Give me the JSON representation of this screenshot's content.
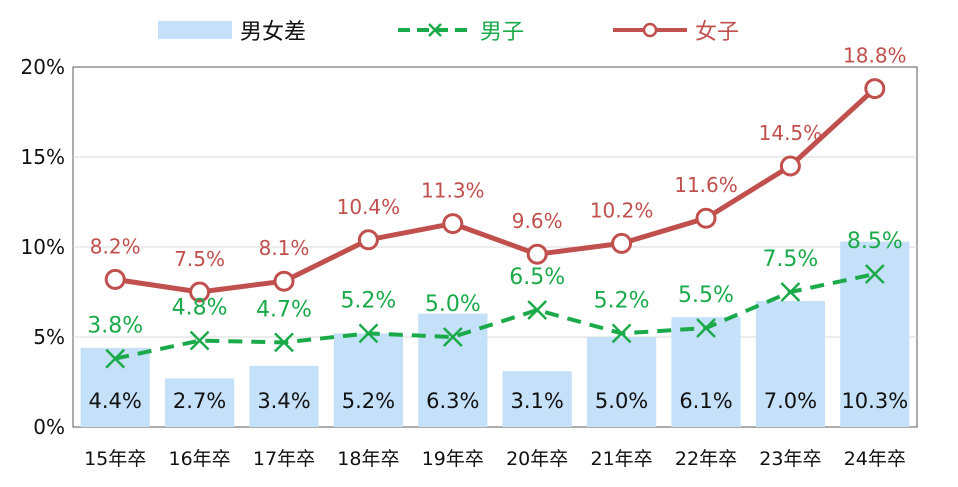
{
  "legend": {
    "diff": "男女差",
    "male": "男子",
    "female": "女子"
  },
  "colors": {
    "diff_bar": "#c5e0f9",
    "male": "#1aaa4a",
    "female": "#c0504d",
    "grid": "#d9d9d9",
    "axis": "#595959",
    "bar_label": "#111111"
  },
  "chart_data": {
    "type": "bar",
    "categories": [
      "15年卒",
      "16年卒",
      "17年卒",
      "18年卒",
      "19年卒",
      "20年卒",
      "21年卒",
      "22年卒",
      "23年卒",
      "24年卒"
    ],
    "ylim": [
      0,
      20
    ],
    "yticks": [
      "0%",
      "5%",
      "10%",
      "15%",
      "20%"
    ],
    "grid": true,
    "legend_position": "top",
    "series": [
      {
        "name": "男女差",
        "type": "bar",
        "values": [
          4.4,
          2.7,
          3.4,
          5.2,
          6.3,
          3.1,
          5.0,
          6.1,
          7.0,
          10.3
        ],
        "labels": [
          "4.4%",
          "2.7%",
          "3.4%",
          "5.2%",
          "6.3%",
          "3.1%",
          "5.0%",
          "6.1%",
          "7.0%",
          "10.3%"
        ]
      },
      {
        "name": "男子",
        "type": "line",
        "style": "dashed-x-marker",
        "values": [
          3.8,
          4.8,
          4.7,
          5.2,
          5.0,
          6.5,
          5.2,
          5.5,
          7.5,
          8.5
        ],
        "labels": [
          "3.8%",
          "4.8%",
          "4.7%",
          "5.2%",
          "5.0%",
          "6.5%",
          "5.2%",
          "5.5%",
          "7.5%",
          "8.5%"
        ]
      },
      {
        "name": "女子",
        "type": "line",
        "style": "solid-circle-marker",
        "values": [
          8.2,
          7.5,
          8.1,
          10.4,
          11.3,
          9.6,
          10.2,
          11.6,
          14.5,
          18.8
        ],
        "labels": [
          "8.2%",
          "7.5%",
          "8.1%",
          "10.4%",
          "11.3%",
          "9.6%",
          "10.2%",
          "11.6%",
          "14.5%",
          "18.8%"
        ]
      }
    ]
  }
}
